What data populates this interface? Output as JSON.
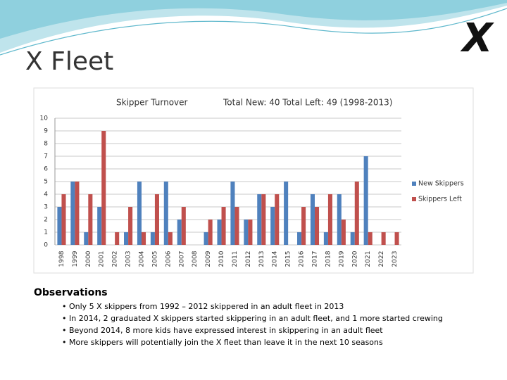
{
  "title": "X Fleet",
  "logo": "X",
  "chart_data": {
    "type": "bar",
    "title": "Skipper Turnover",
    "subtitle": "Total New: 40  Total Left: 49  (1998-2013)",
    "categories": [
      "1998",
      "1999",
      "2000",
      "2001",
      "2002",
      "2003",
      "2004",
      "2005",
      "2006",
      "2007",
      "2008",
      "2009",
      "2010",
      "2011",
      "2012",
      "2013",
      "2014",
      "2015",
      "2016",
      "2017",
      "2018",
      "2019",
      "2020",
      "2021",
      "2022",
      "2023"
    ],
    "series": [
      {
        "name": "New Skippers",
        "color": "#4f81bd",
        "values": [
          3,
          5,
          1,
          3,
          0,
          1,
          5,
          1,
          5,
          2,
          0,
          1,
          2,
          5,
          2,
          4,
          3,
          5,
          1,
          4,
          1,
          4,
          1,
          7,
          0,
          0
        ]
      },
      {
        "name": "Skippers Left",
        "color": "#c0504d",
        "values": [
          4,
          5,
          4,
          9,
          1,
          3,
          1,
          4,
          1,
          3,
          0,
          2,
          3,
          3,
          2,
          4,
          4,
          0,
          3,
          3,
          4,
          2,
          5,
          1,
          1,
          1
        ]
      }
    ],
    "ylim": [
      0,
      10
    ],
    "yticks": [
      0,
      1,
      2,
      3,
      4,
      5,
      6,
      7,
      8,
      9,
      10
    ],
    "grid": true,
    "legend": "right"
  },
  "observations": {
    "heading": "Observations",
    "items": [
      "• Only 5 X skippers from 1992 – 2012 skippered in an adult fleet in 2013",
      "• In 2014, 2 graduated X skippers started skippering in an adult fleet, and 1 more started crewing",
      "• Beyond 2014, 8 more kids have expressed interest in skippering in an adult fleet",
      "• More skippers will potentially join the X fleet than leave it in the next 10 seasons"
    ]
  }
}
